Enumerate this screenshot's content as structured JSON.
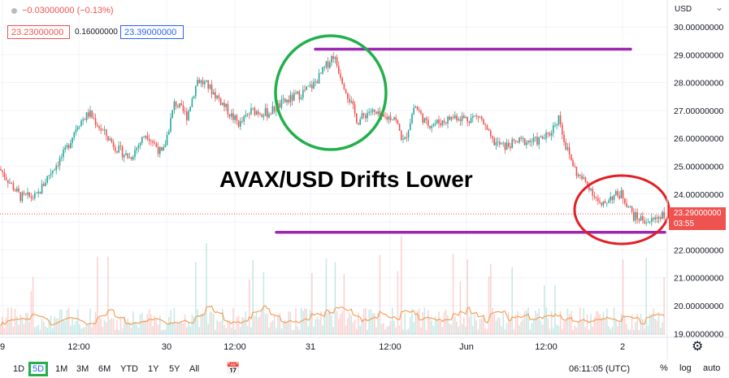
{
  "header": {
    "change_text": "−0.03000000 (−0.13%)",
    "bid": "23.23000000",
    "spread": "0.16000000",
    "ask": "23.39000000"
  },
  "price_axis": {
    "currency": "USD",
    "last_price_label": "23.29000000",
    "countdown": "03:55"
  },
  "annotation": {
    "title": "AVAX/USD Drifts Lower"
  },
  "toolbar": {
    "ranges": [
      "1D",
      "5D",
      "1M",
      "3M",
      "6M",
      "YTD",
      "1Y",
      "5Y",
      "All"
    ],
    "active_range": "5D",
    "clock": "06:11:05 (UTC)",
    "percent_label": "%",
    "log_label": "log",
    "auto_label": "auto"
  },
  "colors": {
    "up": "#26a69a",
    "down": "#ef5350",
    "purple_line": "#9c27b0",
    "green_circle": "#22b04b",
    "red_circle": "#e31e24",
    "volume_ma": "#f5a05a"
  },
  "chart_data": {
    "type": "candlestick",
    "yaxis_ticks": [
      "30.00000000",
      "29.00000000",
      "28.00000000",
      "27.00000000",
      "26.00000000",
      "25.00000000",
      "24.00000000",
      "23.00000000",
      "22.00000000",
      "21.00000000",
      "20.00000000",
      "19.00000000"
    ],
    "xaxis_ticks": [
      "9",
      "12:00",
      "30",
      "12:00",
      "31",
      "12:00",
      "Jun",
      "12:00",
      "2"
    ],
    "ylim": [
      18.9,
      30.3
    ],
    "last_price": 23.29,
    "horizontal_lines": [
      29.2,
      22.63
    ],
    "price_path": [
      [
        0,
        24.9
      ],
      [
        15,
        24.3
      ],
      [
        25,
        23.9
      ],
      [
        45,
        23.9
      ],
      [
        60,
        24.7
      ],
      [
        80,
        25.5
      ],
      [
        95,
        26.5
      ],
      [
        110,
        26.9
      ],
      [
        125,
        26.3
      ],
      [
        145,
        25.6
      ],
      [
        160,
        25.3
      ],
      [
        180,
        26.2
      ],
      [
        200,
        25.4
      ],
      [
        215,
        27.3
      ],
      [
        230,
        26.8
      ],
      [
        243,
        28.1
      ],
      [
        255,
        27.9
      ],
      [
        270,
        27.4
      ],
      [
        285,
        26.8
      ],
      [
        295,
        26.5
      ],
      [
        310,
        27.0
      ],
      [
        330,
        26.9
      ],
      [
        350,
        27.3
      ],
      [
        370,
        27.6
      ],
      [
        385,
        27.9
      ],
      [
        395,
        28.3
      ],
      [
        410,
        29.0
      ],
      [
        425,
        27.8
      ],
      [
        440,
        26.6
      ],
      [
        455,
        27.0
      ],
      [
        470,
        26.7
      ],
      [
        485,
        26.8
      ],
      [
        497,
        25.8
      ],
      [
        510,
        27.2
      ],
      [
        525,
        26.5
      ],
      [
        545,
        26.6
      ],
      [
        560,
        26.8
      ],
      [
        575,
        26.7
      ],
      [
        590,
        26.8
      ],
      [
        605,
        25.9
      ],
      [
        620,
        25.7
      ],
      [
        640,
        25.9
      ],
      [
        660,
        25.9
      ],
      [
        675,
        26.1
      ],
      [
        688,
        26.8
      ],
      [
        695,
        25.8
      ],
      [
        710,
        24.7
      ],
      [
        725,
        24.3
      ],
      [
        740,
        23.5
      ],
      [
        750,
        23.9
      ],
      [
        765,
        24.0
      ],
      [
        780,
        23.2
      ],
      [
        800,
        23.0
      ],
      [
        815,
        23.3
      ]
    ],
    "annotations": [
      "AVAX/USD Drifts Lower"
    ]
  }
}
